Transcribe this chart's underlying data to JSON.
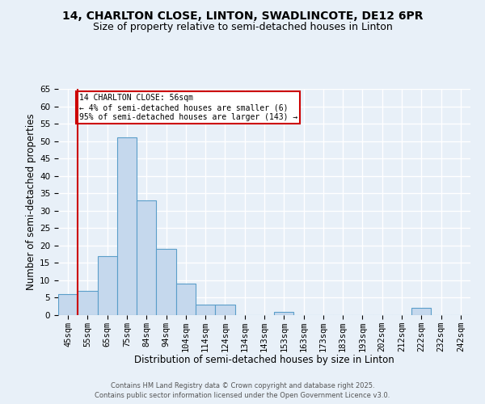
{
  "title1": "14, CHARLTON CLOSE, LINTON, SWADLINCOTE, DE12 6PR",
  "title2": "Size of property relative to semi-detached houses in Linton",
  "xlabel": "Distribution of semi-detached houses by size in Linton",
  "ylabel": "Number of semi-detached properties",
  "categories": [
    "45sqm",
    "55sqm",
    "65sqm",
    "75sqm",
    "84sqm",
    "94sqm",
    "104sqm",
    "114sqm",
    "124sqm",
    "134sqm",
    "143sqm",
    "153sqm",
    "163sqm",
    "173sqm",
    "183sqm",
    "193sqm",
    "202sqm",
    "212sqm",
    "222sqm",
    "232sqm",
    "242sqm"
  ],
  "values": [
    6,
    7,
    17,
    51,
    33,
    19,
    9,
    3,
    3,
    0,
    0,
    1,
    0,
    0,
    0,
    0,
    0,
    0,
    2,
    0,
    0
  ],
  "bar_color": "#c5d8ed",
  "bar_edge_color": "#5a9ec9",
  "background_color": "#e8f0f8",
  "grid_color": "#ffffff",
  "vline_color": "#cc0000",
  "annotation_text": "14 CHARLTON CLOSE: 56sqm\n← 4% of semi-detached houses are smaller (6)\n95% of semi-detached houses are larger (143) →",
  "annotation_box_color": "#ffffff",
  "annotation_box_edge": "#cc0000",
  "ylim": [
    0,
    65
  ],
  "yticks": [
    0,
    5,
    10,
    15,
    20,
    25,
    30,
    35,
    40,
    45,
    50,
    55,
    60,
    65
  ],
  "footer1": "Contains HM Land Registry data © Crown copyright and database right 2025.",
  "footer2": "Contains public sector information licensed under the Open Government Licence v3.0.",
  "title_fontsize": 10,
  "subtitle_fontsize": 9,
  "axis_label_fontsize": 8.5,
  "tick_fontsize": 7.5,
  "footer_fontsize": 6.0
}
